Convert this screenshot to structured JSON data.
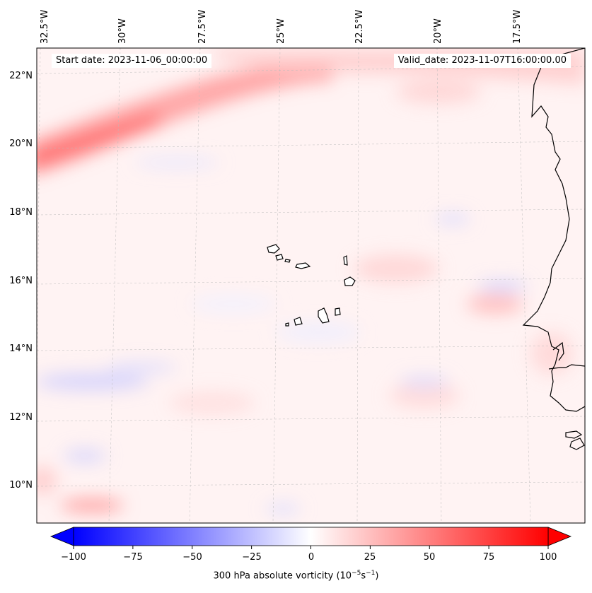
{
  "map": {
    "start_date": "Start date: 2023-11-06_00:00:00",
    "valid_date": "Valid_date: 2023-11-07T16:00:00.00",
    "lon_ticks": [
      "32.5°W",
      "30°W",
      "27.5°W",
      "25°W",
      "22.5°W",
      "20°W",
      "17.5°W"
    ],
    "lat_ticks": [
      "22°N",
      "20°N",
      "18°N",
      "16°N",
      "14°N",
      "12°N",
      "10°N"
    ],
    "region": "Cabo Verde and West African coast",
    "colors": {
      "positive": "#ff0000",
      "negative": "#0000ff",
      "coast": "#000000"
    }
  },
  "colorbar": {
    "ticks": [
      "−100",
      "−75",
      "−50",
      "−25",
      "0",
      "25",
      "50",
      "75",
      "100"
    ],
    "label_prefix": "300 hPa absolute vorticity (10",
    "label_exp1": "−5",
    "label_mid": "s",
    "label_exp2": "−1",
    "label_suffix": ")",
    "min": -100,
    "max": 100
  }
}
